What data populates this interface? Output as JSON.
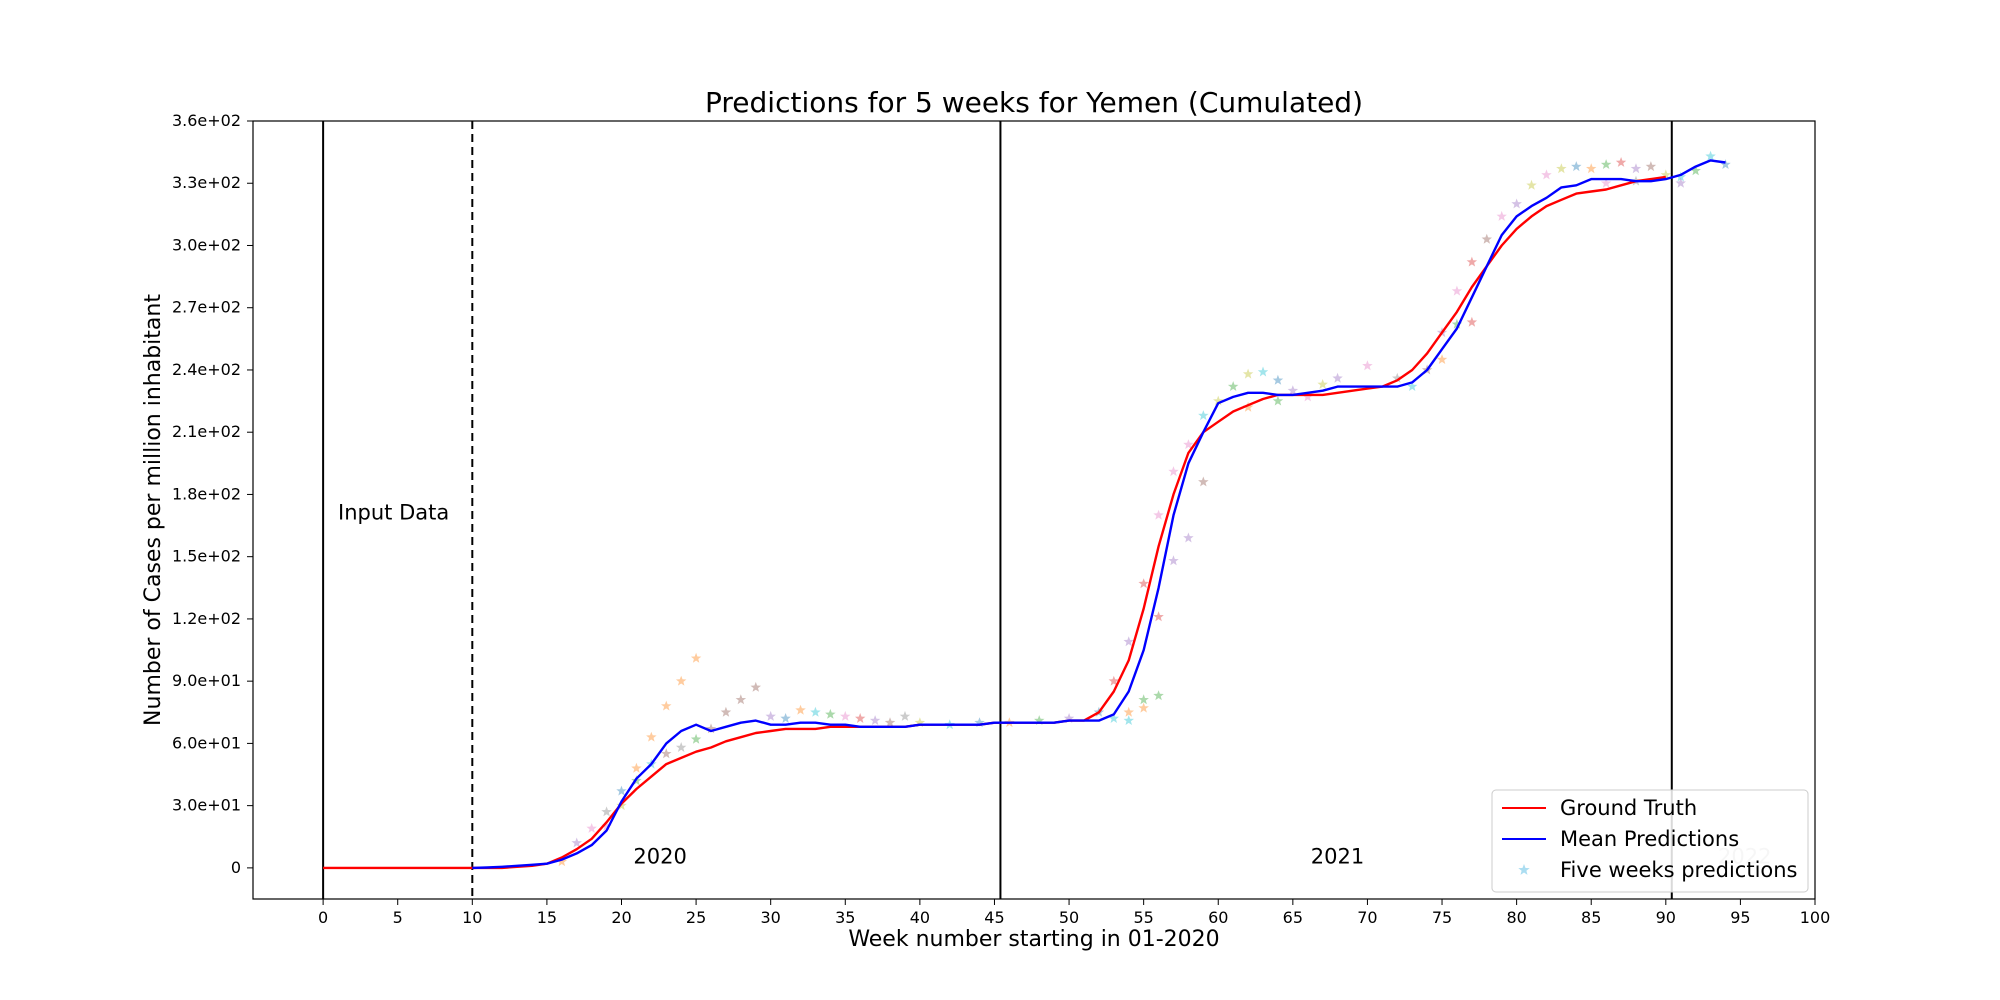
{
  "chart_data": {
    "type": "line",
    "title": "Predictions for 5 weeks for Yemen (Cumulated)",
    "xlabel": "Week number starting in 01-2020",
    "ylabel": "Number of Cases per million inhabitant",
    "xlim": [
      -4.7,
      100
    ],
    "ylim": [
      -15,
      360
    ],
    "xticks": [
      0,
      5,
      10,
      15,
      20,
      25,
      30,
      35,
      40,
      45,
      50,
      55,
      60,
      65,
      70,
      75,
      80,
      85,
      90,
      95,
      100
    ],
    "xtick_labels": [
      "0",
      "5",
      "10",
      "15",
      "20",
      "25",
      "30",
      "35",
      "40",
      "45",
      "50",
      "55",
      "60",
      "65",
      "70",
      "75",
      "80",
      "85",
      "90",
      "95",
      "100"
    ],
    "yticks": [
      0,
      30,
      60,
      90,
      120,
      150,
      180,
      210,
      240,
      270,
      300,
      330,
      360
    ],
    "ytick_labels": [
      "0",
      "3.0e+01",
      "6.0e+01",
      "9.0e+01",
      "1.2e+02",
      "1.5e+02",
      "1.8e+02",
      "2.1e+02",
      "2.4e+02",
      "2.7e+02",
      "3.0e+02",
      "3.3e+02",
      "3.6e+02"
    ],
    "grid": false,
    "legend_position": "bottom-right",
    "vertical_lines": [
      {
        "x": 0,
        "style": "solid"
      },
      {
        "x": 10,
        "style": "dashed"
      },
      {
        "x": 45.4,
        "style": "solid"
      },
      {
        "x": 90.4,
        "style": "solid"
      }
    ],
    "annotations": [
      {
        "text": "Input Data",
        "x": 1,
        "y": 168,
        "color": "#000000"
      },
      {
        "text": "2020",
        "x": 20.8,
        "y": 2,
        "color": "#000000"
      },
      {
        "text": "2021",
        "x": 66.2,
        "y": 2,
        "color": "#000000"
      },
      {
        "text": "2022",
        "x": 93.5,
        "y": 2,
        "color": "#bfbfbf"
      }
    ],
    "series": [
      {
        "name": "Ground Truth",
        "color": "#ff0000",
        "x": [
          0,
          10,
          11,
          12,
          13,
          14,
          15,
          16,
          17,
          18,
          19,
          20,
          21,
          22,
          23,
          24,
          25,
          26,
          27,
          28,
          29,
          30,
          31,
          32,
          33,
          34,
          35,
          36,
          37,
          38,
          39,
          40,
          41,
          42,
          43,
          44,
          45,
          46,
          47,
          48,
          49,
          50,
          51,
          52,
          53,
          54,
          55,
          56,
          57,
          58,
          59,
          60,
          61,
          62,
          63,
          64,
          65,
          66,
          67,
          68,
          69,
          70,
          71,
          72,
          73,
          74,
          75,
          76,
          77,
          78,
          79,
          80,
          81,
          82,
          83,
          84,
          85,
          86,
          87,
          88,
          89,
          90
        ],
        "y": [
          0,
          0,
          0,
          0,
          0.5,
          1,
          2,
          5,
          9,
          14,
          22,
          31,
          38,
          44,
          50,
          53,
          56,
          58,
          61,
          63,
          65,
          66,
          67,
          67,
          67,
          68,
          68,
          68,
          68,
          68,
          68,
          69,
          69,
          69,
          69,
          69,
          70,
          70,
          70,
          70,
          70,
          71,
          71,
          75,
          85,
          100,
          125,
          155,
          180,
          200,
          210,
          215,
          220,
          223,
          226,
          228,
          228,
          228,
          228,
          229,
          230,
          231,
          232,
          235,
          240,
          248,
          258,
          268,
          280,
          290,
          300,
          308,
          314,
          319,
          322,
          325,
          326,
          327,
          329,
          331,
          332,
          333
        ]
      },
      {
        "name": "Mean Predictions",
        "color": "#0000ff",
        "x": [
          10,
          11,
          12,
          13,
          14,
          15,
          16,
          17,
          18,
          19,
          20,
          21,
          22,
          23,
          24,
          25,
          26,
          27,
          28,
          29,
          30,
          31,
          32,
          33,
          34,
          35,
          36,
          37,
          38,
          39,
          40,
          41,
          42,
          43,
          44,
          45,
          46,
          47,
          48,
          49,
          50,
          51,
          52,
          53,
          54,
          55,
          56,
          57,
          58,
          59,
          60,
          61,
          62,
          63,
          64,
          65,
          66,
          67,
          68,
          69,
          70,
          71,
          72,
          73,
          74,
          75,
          76,
          77,
          78,
          79,
          80,
          81,
          82,
          83,
          84,
          85,
          86,
          87,
          88,
          89,
          90,
          91,
          92,
          93,
          94
        ],
        "y": [
          0,
          0.2,
          0.5,
          1,
          1.5,
          2,
          4,
          7,
          11,
          18,
          32,
          43,
          50,
          60,
          66,
          69,
          66,
          68,
          70,
          71,
          69,
          69,
          70,
          70,
          69,
          69,
          68,
          68,
          68,
          68,
          69,
          69,
          69,
          69,
          69,
          70,
          70,
          70,
          70,
          70,
          71,
          71,
          71,
          74,
          85,
          105,
          135,
          170,
          195,
          210,
          224,
          227,
          229,
          229,
          228,
          228,
          229,
          230,
          232,
          232,
          232,
          232,
          232,
          234,
          240,
          250,
          260,
          275,
          290,
          305,
          314,
          319,
          323,
          328,
          329,
          332,
          332,
          332,
          331,
          331,
          332,
          334,
          338,
          341,
          340
        ]
      },
      {
        "name": "Five weeks predictions",
        "type": "scatter",
        "marker": "star",
        "color": "#87ceeb",
        "points": [
          {
            "x": 16,
            "y": 3,
            "color": "#ff7f0e"
          },
          {
            "x": 17,
            "y": 12,
            "color": "#9467bd"
          },
          {
            "x": 18,
            "y": 19,
            "color": "#e377c2"
          },
          {
            "x": 19,
            "y": 27,
            "color": "#7f7f7f"
          },
          {
            "x": 20,
            "y": 37,
            "color": "#1f77b4"
          },
          {
            "x": 21,
            "y": 48,
            "color": "#ff7f0e"
          },
          {
            "x": 22,
            "y": 63,
            "color": "#ff7f0e"
          },
          {
            "x": 23,
            "y": 78,
            "color": "#ff7f0e"
          },
          {
            "x": 24,
            "y": 90,
            "color": "#ff7f0e"
          },
          {
            "x": 25,
            "y": 101,
            "color": "#ff7f0e"
          },
          {
            "x": 19,
            "y": 20,
            "color": "#e377c2"
          },
          {
            "x": 20,
            "y": 30,
            "color": "#bcbd22"
          },
          {
            "x": 21,
            "y": 42,
            "color": "#2ca02c"
          },
          {
            "x": 22,
            "y": 50,
            "color": "#17becf"
          },
          {
            "x": 23,
            "y": 55,
            "color": "#8c564b"
          },
          {
            "x": 24,
            "y": 58,
            "color": "#7f7f7f"
          },
          {
            "x": 25,
            "y": 62,
            "color": "#2ca02c"
          },
          {
            "x": 26,
            "y": 67,
            "color": "#8c564b"
          },
          {
            "x": 27,
            "y": 75,
            "color": "#8c564b"
          },
          {
            "x": 28,
            "y": 81,
            "color": "#8c564b"
          },
          {
            "x": 29,
            "y": 87,
            "color": "#8c564b"
          },
          {
            "x": 30,
            "y": 73,
            "color": "#9467bd"
          },
          {
            "x": 31,
            "y": 72,
            "color": "#1f77b4"
          },
          {
            "x": 32,
            "y": 76,
            "color": "#ff7f0e"
          },
          {
            "x": 33,
            "y": 75,
            "color": "#17becf"
          },
          {
            "x": 34,
            "y": 74,
            "color": "#2ca02c"
          },
          {
            "x": 35,
            "y": 73,
            "color": "#e377c2"
          },
          {
            "x": 36,
            "y": 72,
            "color": "#d62728"
          },
          {
            "x": 37,
            "y": 71,
            "color": "#9467bd"
          },
          {
            "x": 38,
            "y": 70,
            "color": "#8c564b"
          },
          {
            "x": 39,
            "y": 73,
            "color": "#7f7f7f"
          },
          {
            "x": 40,
            "y": 70,
            "color": "#bcbd22"
          },
          {
            "x": 42,
            "y": 69,
            "color": "#17becf"
          },
          {
            "x": 44,
            "y": 70,
            "color": "#1f77b4"
          },
          {
            "x": 46,
            "y": 70,
            "color": "#ff7f0e"
          },
          {
            "x": 48,
            "y": 71,
            "color": "#2ca02c"
          },
          {
            "x": 50,
            "y": 72,
            "color": "#9467bd"
          },
          {
            "x": 52,
            "y": 75,
            "color": "#1f77b4"
          },
          {
            "x": 53,
            "y": 72,
            "color": "#17becf"
          },
          {
            "x": 54,
            "y": 71,
            "color": "#17becf"
          },
          {
            "x": 54,
            "y": 75,
            "color": "#ff7f0e"
          },
          {
            "x": 55,
            "y": 77,
            "color": "#ff7f0e"
          },
          {
            "x": 55,
            "y": 81,
            "color": "#2ca02c"
          },
          {
            "x": 56,
            "y": 83,
            "color": "#2ca02c"
          },
          {
            "x": 53,
            "y": 90,
            "color": "#d62728"
          },
          {
            "x": 54,
            "y": 109,
            "color": "#9467bd"
          },
          {
            "x": 55,
            "y": 137,
            "color": "#d62728"
          },
          {
            "x": 56,
            "y": 170,
            "color": "#e377c2"
          },
          {
            "x": 56,
            "y": 121,
            "color": "#d62728"
          },
          {
            "x": 57,
            "y": 148,
            "color": "#9467bd"
          },
          {
            "x": 57,
            "y": 191,
            "color": "#e377c2"
          },
          {
            "x": 58,
            "y": 159,
            "color": "#9467bd"
          },
          {
            "x": 58,
            "y": 204,
            "color": "#e377c2"
          },
          {
            "x": 59,
            "y": 186,
            "color": "#8c564b"
          },
          {
            "x": 59,
            "y": 218,
            "color": "#17becf"
          },
          {
            "x": 60,
            "y": 225,
            "color": "#bcbd22"
          },
          {
            "x": 61,
            "y": 232,
            "color": "#2ca02c"
          },
          {
            "x": 62,
            "y": 238,
            "color": "#bcbd22"
          },
          {
            "x": 63,
            "y": 239,
            "color": "#17becf"
          },
          {
            "x": 64,
            "y": 235,
            "color": "#1f77b4"
          },
          {
            "x": 65,
            "y": 230,
            "color": "#9467bd"
          },
          {
            "x": 62,
            "y": 222,
            "color": "#ff7f0e"
          },
          {
            "x": 64,
            "y": 225,
            "color": "#2ca02c"
          },
          {
            "x": 66,
            "y": 227,
            "color": "#e377c2"
          },
          {
            "x": 67,
            "y": 233,
            "color": "#bcbd22"
          },
          {
            "x": 68,
            "y": 236,
            "color": "#9467bd"
          },
          {
            "x": 70,
            "y": 242,
            "color": "#e377c2"
          },
          {
            "x": 72,
            "y": 236,
            "color": "#7f7f7f"
          },
          {
            "x": 73,
            "y": 232,
            "color": "#17becf"
          },
          {
            "x": 74,
            "y": 240,
            "color": "#8c564b"
          },
          {
            "x": 75,
            "y": 245,
            "color": "#ff7f0e"
          },
          {
            "x": 75,
            "y": 258,
            "color": "#9467bd"
          },
          {
            "x": 76,
            "y": 262,
            "color": "#2ca02c"
          },
          {
            "x": 77,
            "y": 263,
            "color": "#d62728"
          },
          {
            "x": 76,
            "y": 278,
            "color": "#e377c2"
          },
          {
            "x": 77,
            "y": 292,
            "color": "#d62728"
          },
          {
            "x": 78,
            "y": 303,
            "color": "#8c564b"
          },
          {
            "x": 79,
            "y": 314,
            "color": "#e377c2"
          },
          {
            "x": 80,
            "y": 320,
            "color": "#9467bd"
          },
          {
            "x": 81,
            "y": 329,
            "color": "#bcbd22"
          },
          {
            "x": 82,
            "y": 334,
            "color": "#e377c2"
          },
          {
            "x": 83,
            "y": 337,
            "color": "#bcbd22"
          },
          {
            "x": 84,
            "y": 338,
            "color": "#1f77b4"
          },
          {
            "x": 85,
            "y": 337,
            "color": "#ff7f0e"
          },
          {
            "x": 86,
            "y": 339,
            "color": "#2ca02c"
          },
          {
            "x": 87,
            "y": 340,
            "color": "#d62728"
          },
          {
            "x": 88,
            "y": 337,
            "color": "#9467bd"
          },
          {
            "x": 89,
            "y": 338,
            "color": "#8c564b"
          },
          {
            "x": 86,
            "y": 330,
            "color": "#e377c2"
          },
          {
            "x": 88,
            "y": 331,
            "color": "#7f7f7f"
          },
          {
            "x": 90,
            "y": 334,
            "color": "#bcbd22"
          },
          {
            "x": 91,
            "y": 333,
            "color": "#17becf"
          },
          {
            "x": 92,
            "y": 336,
            "color": "#2ca02c"
          },
          {
            "x": 93,
            "y": 343,
            "color": "#17becf"
          },
          {
            "x": 94,
            "y": 339,
            "color": "#1f77b4"
          },
          {
            "x": 91,
            "y": 330,
            "color": "#9467bd"
          }
        ]
      }
    ]
  },
  "legend": {
    "ground_truth": "Ground Truth",
    "mean_predictions": "Mean Predictions",
    "five_weeks": "Five weeks predictions"
  }
}
